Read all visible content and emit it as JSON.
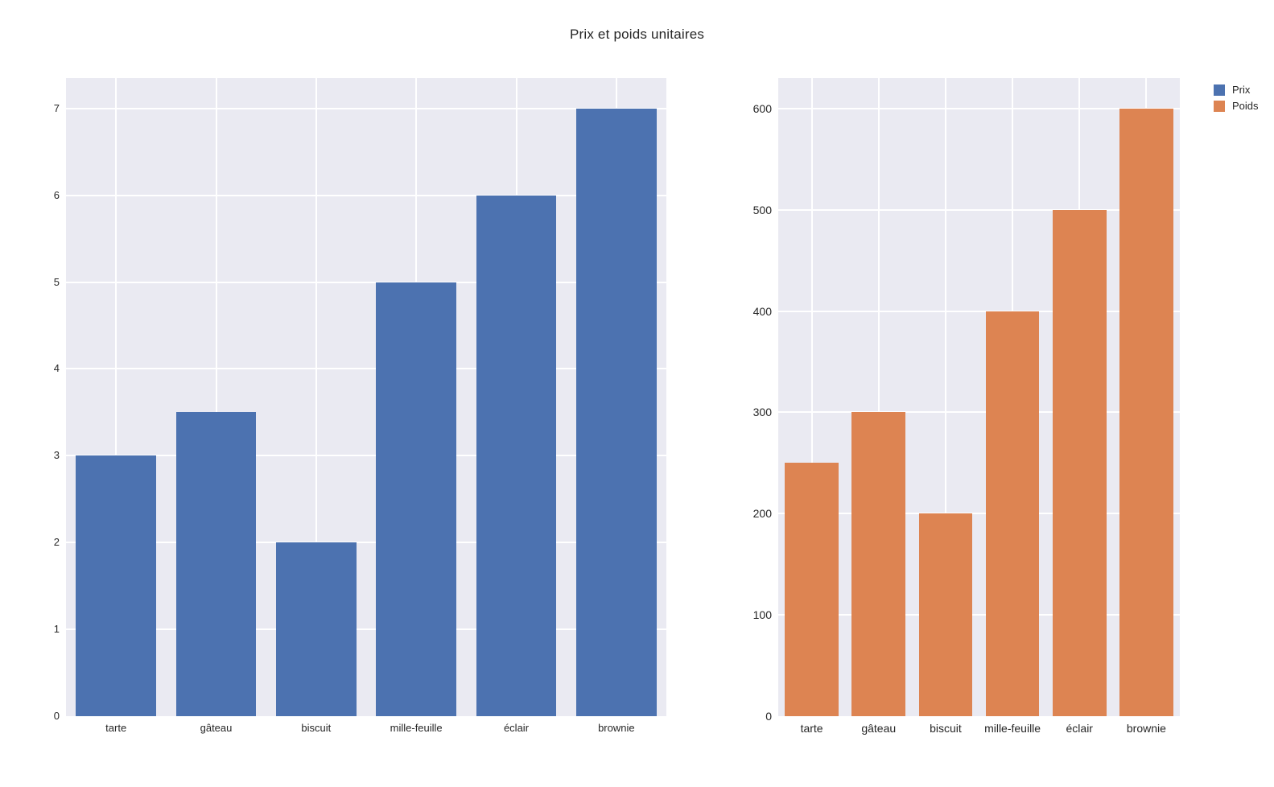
{
  "title": "Prix et poids unitaires",
  "text_color": "#262626",
  "legend": {
    "position": "top-right",
    "entries": [
      {
        "label": "Prix",
        "color": "#4c72b0"
      },
      {
        "label": "Poids",
        "color": "#dd8452"
      }
    ]
  },
  "chart_data": [
    {
      "type": "bar",
      "series_name": "Prix",
      "title": "",
      "xlabel": "",
      "ylabel": "",
      "categories": [
        "tarte",
        "gâteau",
        "biscuit",
        "mille-feuille",
        "éclair",
        "brownie"
      ],
      "values": [
        3,
        3.5,
        2,
        5,
        6,
        7
      ],
      "bar_color": "#4c72b0",
      "yticks": [
        0,
        1,
        2,
        3,
        4,
        5,
        6,
        7
      ],
      "ylim": [
        0,
        7.35
      ],
      "grid": true,
      "legend_position": "none",
      "plot_background": "#eaeaf2",
      "grid_color": "#ffffff",
      "bar_width_fraction": 0.8
    },
    {
      "type": "bar",
      "series_name": "Poids",
      "title": "",
      "xlabel": "",
      "ylabel": "",
      "categories": [
        "tarte",
        "gâteau",
        "biscuit",
        "mille-feuille",
        "éclair",
        "brownie"
      ],
      "values": [
        250,
        300,
        200,
        400,
        500,
        600
      ],
      "bar_color": "#dd8452",
      "yticks": [
        0,
        100,
        200,
        300,
        400,
        500,
        600
      ],
      "ylim": [
        0,
        630
      ],
      "grid": true,
      "legend_position": "none",
      "plot_background": "#eaeaf2",
      "grid_color": "#ffffff",
      "bar_width_fraction": 0.8
    }
  ]
}
